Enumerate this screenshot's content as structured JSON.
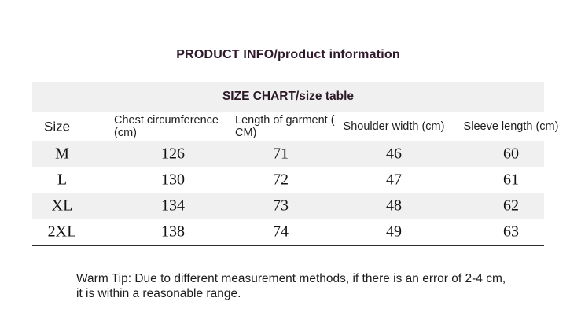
{
  "page_title": "PRODUCT INFO/product information",
  "size_chart": {
    "caption": "SIZE CHART/size table",
    "columns": [
      "Size",
      "Chest circumference (cm)",
      "Length of garment ( CM)",
      "Shoulder width (cm)",
      "Sleeve length (cm)"
    ],
    "rows": [
      [
        "M",
        "126",
        "71",
        "46",
        "60"
      ],
      [
        "L",
        "130",
        "72",
        "47",
        "61"
      ],
      [
        "XL",
        "134",
        "73",
        "48",
        "62"
      ],
      [
        "2XL",
        "138",
        "74",
        "49",
        "63"
      ]
    ]
  },
  "warm_tip": "Warm Tip: Due to different measurement methods, if there is an error of 2-4 cm, it is within a reasonable range.",
  "colors": {
    "stripe_bg": "#f1f0f1",
    "heading_text": "#2d192a",
    "border_line": "#2d2d2d"
  }
}
